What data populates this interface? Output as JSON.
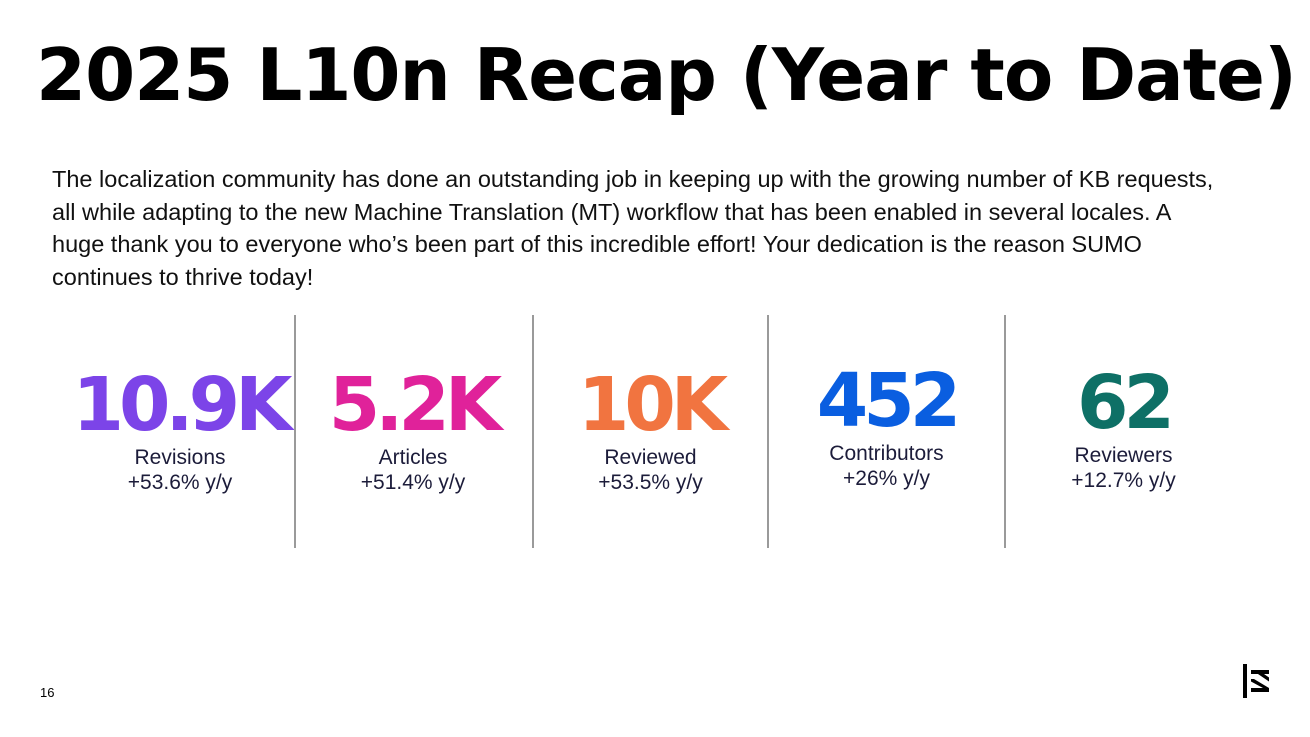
{
  "slide": {
    "title": "2025 L10n Recap (Year to Date)",
    "intro": "The localization community has done an outstanding job in keeping up with the growing number of KB requests, all while adapting to the new Machine Translation (MT) workflow that has been enabled in several locales. A huge thank you to everyone who’s been part of this incredible effort! Your dedication is the reason SUMO continues to thrive today!",
    "page_number": "16"
  },
  "stats": [
    {
      "value": "10.9K",
      "label": "Revisions",
      "change": "+53.6% y/y",
      "color": "#7c44e8"
    },
    {
      "value": "5.2K",
      "label": "Articles",
      "change": "+51.4% y/y",
      "color": "#e0229a"
    },
    {
      "value": "10K",
      "label": "Reviewed",
      "change": "+53.5% y/y",
      "color": "#f17440"
    },
    {
      "value": "452",
      "label": "Contributors",
      "change": "+26% y/y",
      "color": "#0a5ee0"
    },
    {
      "value": "62",
      "label": "Reviewers",
      "change": "+12.7% y/y",
      "color": "#0e7066"
    }
  ],
  "colors": {
    "divider": "#9a9a9a",
    "text": "#000000",
    "stat_text": "#1c1c3a"
  },
  "logo": {
    "icon": "mozilla-m-logo"
  }
}
